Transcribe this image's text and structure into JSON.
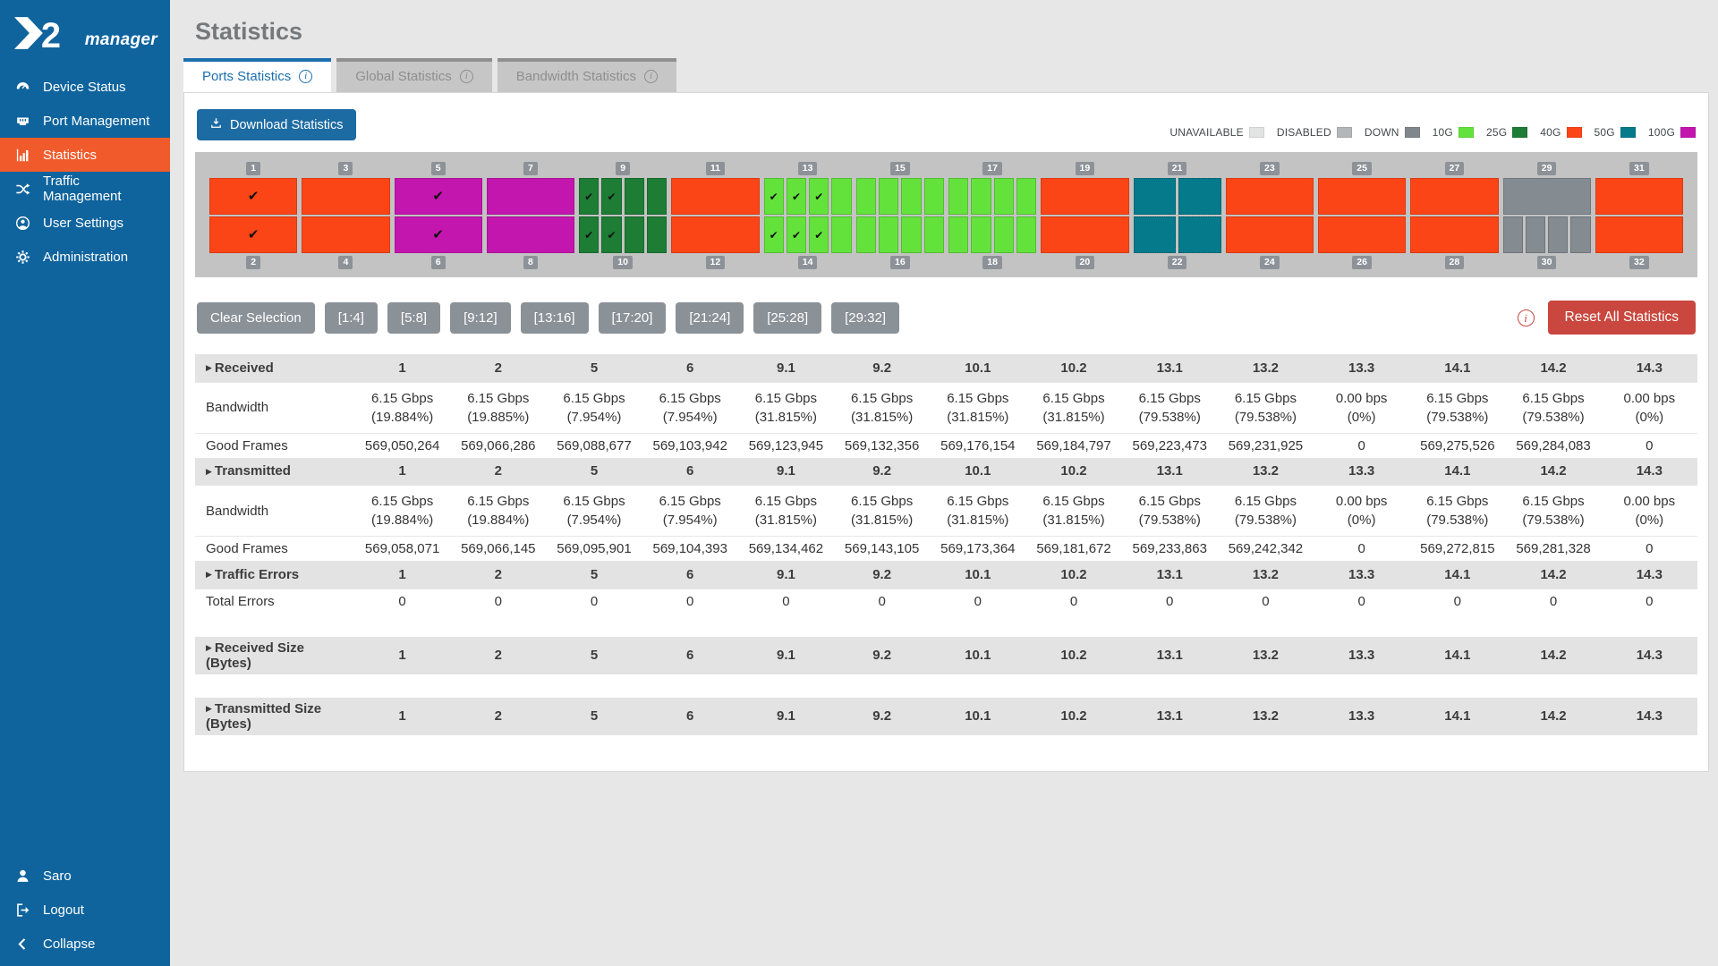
{
  "app": {
    "logo_text": "2",
    "logo_sub": "manager"
  },
  "sidebar": {
    "items": [
      {
        "label": "Device Status",
        "icon": "gauge-icon",
        "active": false
      },
      {
        "label": "Port Management",
        "icon": "port-icon",
        "active": false
      },
      {
        "label": "Statistics",
        "icon": "bar-chart-icon",
        "active": true
      },
      {
        "label": "Traffic Management",
        "icon": "shuffle-icon",
        "active": false
      },
      {
        "label": "User Settings",
        "icon": "user-circle-icon",
        "active": false
      },
      {
        "label": "Administration",
        "icon": "gear-icon",
        "active": false
      }
    ],
    "footer_items": [
      {
        "label": "Saro",
        "icon": "person-icon"
      },
      {
        "label": "Logout",
        "icon": "logout-icon"
      },
      {
        "label": "Collapse",
        "icon": "chevron-left-icon"
      }
    ]
  },
  "header": {
    "title": "Statistics"
  },
  "tabs": [
    {
      "label": "Ports Statistics",
      "active": true
    },
    {
      "label": "Global Statistics",
      "active": false
    },
    {
      "label": "Bandwidth Statistics",
      "active": false
    }
  ],
  "toolbar": {
    "download_label": "Download Statistics"
  },
  "legend": [
    {
      "label": "UNAVAILABLE",
      "color": "#e2e3e3"
    },
    {
      "label": "DISABLED",
      "color": "#b4b6b8"
    },
    {
      "label": "DOWN",
      "color": "#7f878d"
    },
    {
      "label": "10G",
      "color": "#64e23c"
    },
    {
      "label": "25G",
      "color": "#1d7d35"
    },
    {
      "label": "40G",
      "color": "#fc4517"
    },
    {
      "label": "50G",
      "color": "#047a8a"
    },
    {
      "label": "100G",
      "color": "#c316ae"
    }
  ],
  "speed_colors": {
    "10G": "#64e23c",
    "25G": "#1d7d35",
    "40G": "#fc4517",
    "50G": "#047a8a",
    "100G": "#c316ae",
    "DOWN": "#848b91"
  },
  "port_slots": [
    {
      "top": {
        "number": "1",
        "speed": "40G",
        "cells": 1,
        "checks": [
          1
        ]
      },
      "bottom": {
        "number": "2",
        "speed": "40G",
        "cells": 1,
        "checks": [
          1
        ]
      }
    },
    {
      "top": {
        "number": "3",
        "speed": "40G",
        "cells": 1,
        "checks": []
      },
      "bottom": {
        "number": "4",
        "speed": "40G",
        "cells": 1,
        "checks": []
      }
    },
    {
      "top": {
        "number": "5",
        "speed": "100G",
        "cells": 1,
        "checks": [
          1
        ]
      },
      "bottom": {
        "number": "6",
        "speed": "100G",
        "cells": 1,
        "checks": [
          1
        ]
      }
    },
    {
      "top": {
        "number": "7",
        "speed": "100G",
        "cells": 1,
        "checks": []
      },
      "bottom": {
        "number": "8",
        "speed": "100G",
        "cells": 1,
        "checks": []
      }
    },
    {
      "top": {
        "number": "9",
        "speed": "25G",
        "cells": 4,
        "checks": [
          1,
          2
        ]
      },
      "bottom": {
        "number": "10",
        "speed": "25G",
        "cells": 4,
        "checks": [
          1,
          2
        ]
      }
    },
    {
      "top": {
        "number": "11",
        "speed": "40G",
        "cells": 1,
        "checks": []
      },
      "bottom": {
        "number": "12",
        "speed": "40G",
        "cells": 1,
        "checks": []
      }
    },
    {
      "top": {
        "number": "13",
        "speed": "10G",
        "cells": 4,
        "checks": [
          1,
          2,
          3
        ]
      },
      "bottom": {
        "number": "14",
        "speed": "10G",
        "cells": 4,
        "checks": [
          1,
          2,
          3
        ]
      }
    },
    {
      "top": {
        "number": "15",
        "speed": "10G",
        "cells": 4,
        "checks": []
      },
      "bottom": {
        "number": "16",
        "speed": "10G",
        "cells": 4,
        "checks": []
      }
    },
    {
      "top": {
        "number": "17",
        "speed": "10G",
        "cells": 4,
        "checks": []
      },
      "bottom": {
        "number": "18",
        "speed": "10G",
        "cells": 4,
        "checks": []
      }
    },
    {
      "top": {
        "number": "19",
        "speed": "40G",
        "cells": 1,
        "checks": []
      },
      "bottom": {
        "number": "20",
        "speed": "40G",
        "cells": 1,
        "checks": []
      }
    },
    {
      "top": {
        "number": "21",
        "speed": "50G",
        "cells": 2,
        "checks": []
      },
      "bottom": {
        "number": "22",
        "speed": "50G",
        "cells": 2,
        "checks": []
      }
    },
    {
      "top": {
        "number": "23",
        "speed": "40G",
        "cells": 1,
        "checks": []
      },
      "bottom": {
        "number": "24",
        "speed": "40G",
        "cells": 1,
        "checks": []
      }
    },
    {
      "top": {
        "number": "25",
        "speed": "40G",
        "cells": 1,
        "checks": []
      },
      "bottom": {
        "number": "26",
        "speed": "40G",
        "cells": 1,
        "checks": []
      }
    },
    {
      "top": {
        "number": "27",
        "speed": "40G",
        "cells": 1,
        "checks": []
      },
      "bottom": {
        "number": "28",
        "speed": "40G",
        "cells": 1,
        "checks": []
      }
    },
    {
      "top": {
        "number": "29",
        "speed": "DOWN",
        "cells": 1,
        "checks": []
      },
      "bottom": {
        "number": "30",
        "speed": "DOWN",
        "cells": 4,
        "checks": []
      }
    },
    {
      "top": {
        "number": "31",
        "speed": "40G",
        "cells": 1,
        "checks": []
      },
      "bottom": {
        "number": "32",
        "speed": "40G",
        "cells": 1,
        "checks": []
      }
    }
  ],
  "selection_buttons": [
    "Clear Selection",
    "[1:4]",
    "[5:8]",
    "[9:12]",
    "[13:16]",
    "[17:20]",
    "[21:24]",
    "[25:28]",
    "[29:32]"
  ],
  "actions": {
    "reset_label": "Reset All Statistics"
  },
  "table": {
    "columns": [
      "1",
      "2",
      "5",
      "6",
      "9.1",
      "9.2",
      "10.1",
      "10.2",
      "13.1",
      "13.2",
      "13.3",
      "14.1",
      "14.2",
      "14.3"
    ],
    "sections": [
      {
        "title": "Received",
        "gap_before": false,
        "rows": [
          {
            "label": "Bandwidth",
            "two_line": true,
            "values": [
              "6.15 Gbps\n(19.884%)",
              "6.15 Gbps\n(19.885%)",
              "6.15 Gbps\n(7.954%)",
              "6.15 Gbps\n(7.954%)",
              "6.15 Gbps\n(31.815%)",
              "6.15 Gbps\n(31.815%)",
              "6.15 Gbps\n(31.815%)",
              "6.15 Gbps\n(31.815%)",
              "6.15 Gbps\n(79.538%)",
              "6.15 Gbps\n(79.538%)",
              "0.00 bps\n(0%)",
              "6.15 Gbps\n(79.538%)",
              "6.15 Gbps\n(79.538%)",
              "0.00 bps\n(0%)"
            ]
          },
          {
            "label": "Good Frames",
            "two_line": false,
            "values": [
              "569,050,264",
              "569,066,286",
              "569,088,677",
              "569,103,942",
              "569,123,945",
              "569,132,356",
              "569,176,154",
              "569,184,797",
              "569,223,473",
              "569,231,925",
              "0",
              "569,275,526",
              "569,284,083",
              "0"
            ]
          }
        ]
      },
      {
        "title": "Transmitted",
        "gap_before": false,
        "rows": [
          {
            "label": "Bandwidth",
            "two_line": true,
            "values": [
              "6.15 Gbps\n(19.884%)",
              "6.15 Gbps\n(19.884%)",
              "6.15 Gbps\n(7.954%)",
              "6.15 Gbps\n(7.954%)",
              "6.15 Gbps\n(31.815%)",
              "6.15 Gbps\n(31.815%)",
              "6.15 Gbps\n(31.815%)",
              "6.15 Gbps\n(31.815%)",
              "6.15 Gbps\n(79.538%)",
              "6.15 Gbps\n(79.538%)",
              "0.00 bps\n(0%)",
              "6.15 Gbps\n(79.538%)",
              "6.15 Gbps\n(79.538%)",
              "0.00 bps\n(0%)"
            ]
          },
          {
            "label": "Good Frames",
            "two_line": false,
            "values": [
              "569,058,071",
              "569,066,145",
              "569,095,901",
              "569,104,393",
              "569,134,462",
              "569,143,105",
              "569,173,364",
              "569,181,672",
              "569,233,863",
              "569,242,342",
              "0",
              "569,272,815",
              "569,281,328",
              "0"
            ]
          }
        ]
      },
      {
        "title": "Traffic Errors",
        "gap_before": false,
        "rows": [
          {
            "label": "Total Errors",
            "two_line": false,
            "values": [
              "0",
              "0",
              "0",
              "0",
              "0",
              "0",
              "0",
              "0",
              "0",
              "0",
              "0",
              "0",
              "0",
              "0"
            ]
          }
        ]
      },
      {
        "title": "Received Size (Bytes)",
        "gap_before": true,
        "rows": []
      },
      {
        "title": "Transmitted Size (Bytes)",
        "gap_before": true,
        "rows": []
      }
    ]
  }
}
